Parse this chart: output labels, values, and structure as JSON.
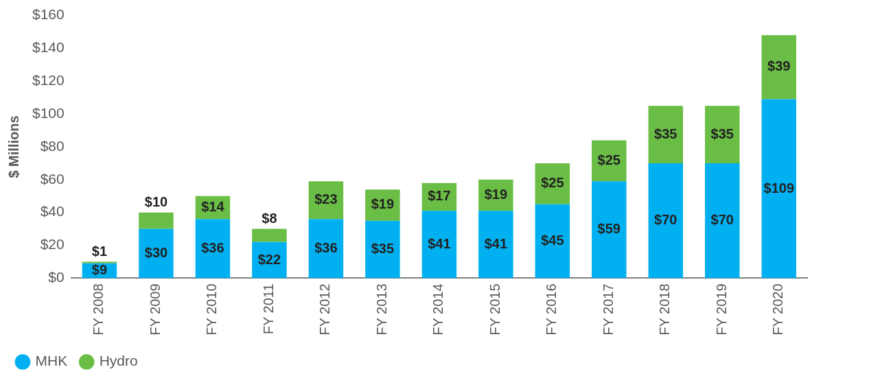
{
  "chart_data": {
    "type": "bar",
    "stacked": true,
    "ylabel": "$ Millions",
    "categories": [
      "FY 2008",
      "FY 2009",
      "FY 2010",
      "FY 2011",
      "FY 2012",
      "FY 2013",
      "FY 2014",
      "FY 2015",
      "FY 2016",
      "FY 2017",
      "FY 2018",
      "FY 2019",
      "FY 2020"
    ],
    "series": [
      {
        "name": "MHK",
        "color": "#00b0f0",
        "values": [
          9,
          30,
          36,
          22,
          36,
          35,
          41,
          41,
          45,
          59,
          70,
          70,
          109
        ],
        "value_labels": [
          "$9",
          "$30",
          "$36",
          "$22",
          "$36",
          "$35",
          "$41",
          "$41",
          "$45",
          "$59",
          "$70",
          "$70",
          "$109"
        ]
      },
      {
        "name": "Hydro",
        "color": "#6abd45",
        "values": [
          1,
          10,
          14,
          8,
          23,
          19,
          17,
          19,
          25,
          25,
          35,
          35,
          39
        ],
        "value_labels": [
          "$1",
          "$10",
          "$14",
          "$8",
          "$23",
          "$19",
          "$17",
          "$19",
          "$25",
          "$25",
          "$35",
          "$35",
          "$39"
        ]
      }
    ],
    "ylim": [
      0,
      160
    ],
    "yticks": [
      {
        "value": 0,
        "label": "$0"
      },
      {
        "value": 20,
        "label": "$20"
      },
      {
        "value": 40,
        "label": "$40"
      },
      {
        "value": 60,
        "label": "$60"
      },
      {
        "value": 80,
        "label": "$80"
      },
      {
        "value": 100,
        "label": "$100"
      },
      {
        "value": 120,
        "label": "$120"
      },
      {
        "value": 140,
        "label": "$140"
      },
      {
        "value": 160,
        "label": "$160"
      }
    ],
    "grid": false,
    "legend": "bottom left"
  }
}
